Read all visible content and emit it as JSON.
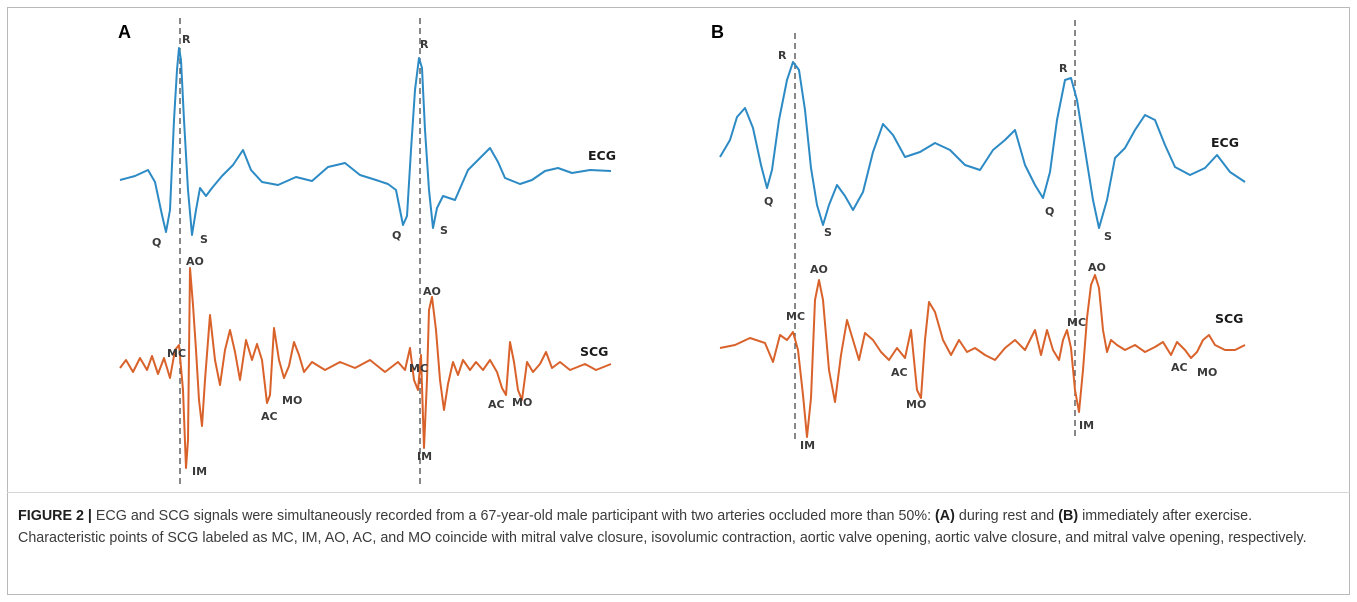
{
  "figure": {
    "colors": {
      "ecg": "#2c8ac4",
      "scg": "#d9622b",
      "marker": "#555555"
    },
    "panel_a": {
      "letter": "A",
      "ecg_label": "ECG",
      "scg_label": "SCG",
      "beat1": {
        "R": "R",
        "Q": "Q",
        "S": "S",
        "AO": "AO",
        "MC": "MC",
        "IM": "IM",
        "AC": "AC",
        "MO": "MO"
      },
      "beat2": {
        "R": "R",
        "Q": "Q",
        "S": "S",
        "AO": "AO",
        "MC": "MC",
        "IM": "IM",
        "AC": "AC",
        "MO": "MO"
      }
    },
    "panel_b": {
      "letter": "B",
      "ecg_label": "ECG",
      "scg_label": "SCG",
      "beat1": {
        "R": "R",
        "Q": "Q",
        "S": "S",
        "AO": "AO",
        "MC": "MC",
        "IM": "IM",
        "AC": "AC",
        "MO": "MO"
      },
      "beat2": {
        "R": "R",
        "Q": "Q",
        "S": "S",
        "AO": "AO",
        "MC": "MC",
        "IM": "IM",
        "AC": "AC",
        "MO": "MO"
      }
    }
  },
  "caption": {
    "label": "FIGURE 2 |",
    "text_1": " ECG and SCG signals were simultaneously recorded from a 67-year-old male participant with two arteries occluded more than 50%: ",
    "ref_a": "(A)",
    "text_2": " during rest and ",
    "ref_b": "(B)",
    "text_3": " immediately after exercise. Characteristic points of SCG labeled as MC, IM, AO, AC, and MO coincide with mitral valve closure, isovolumic contraction, aortic valve opening, aortic valve closure, and mitral valve opening, respectively."
  }
}
